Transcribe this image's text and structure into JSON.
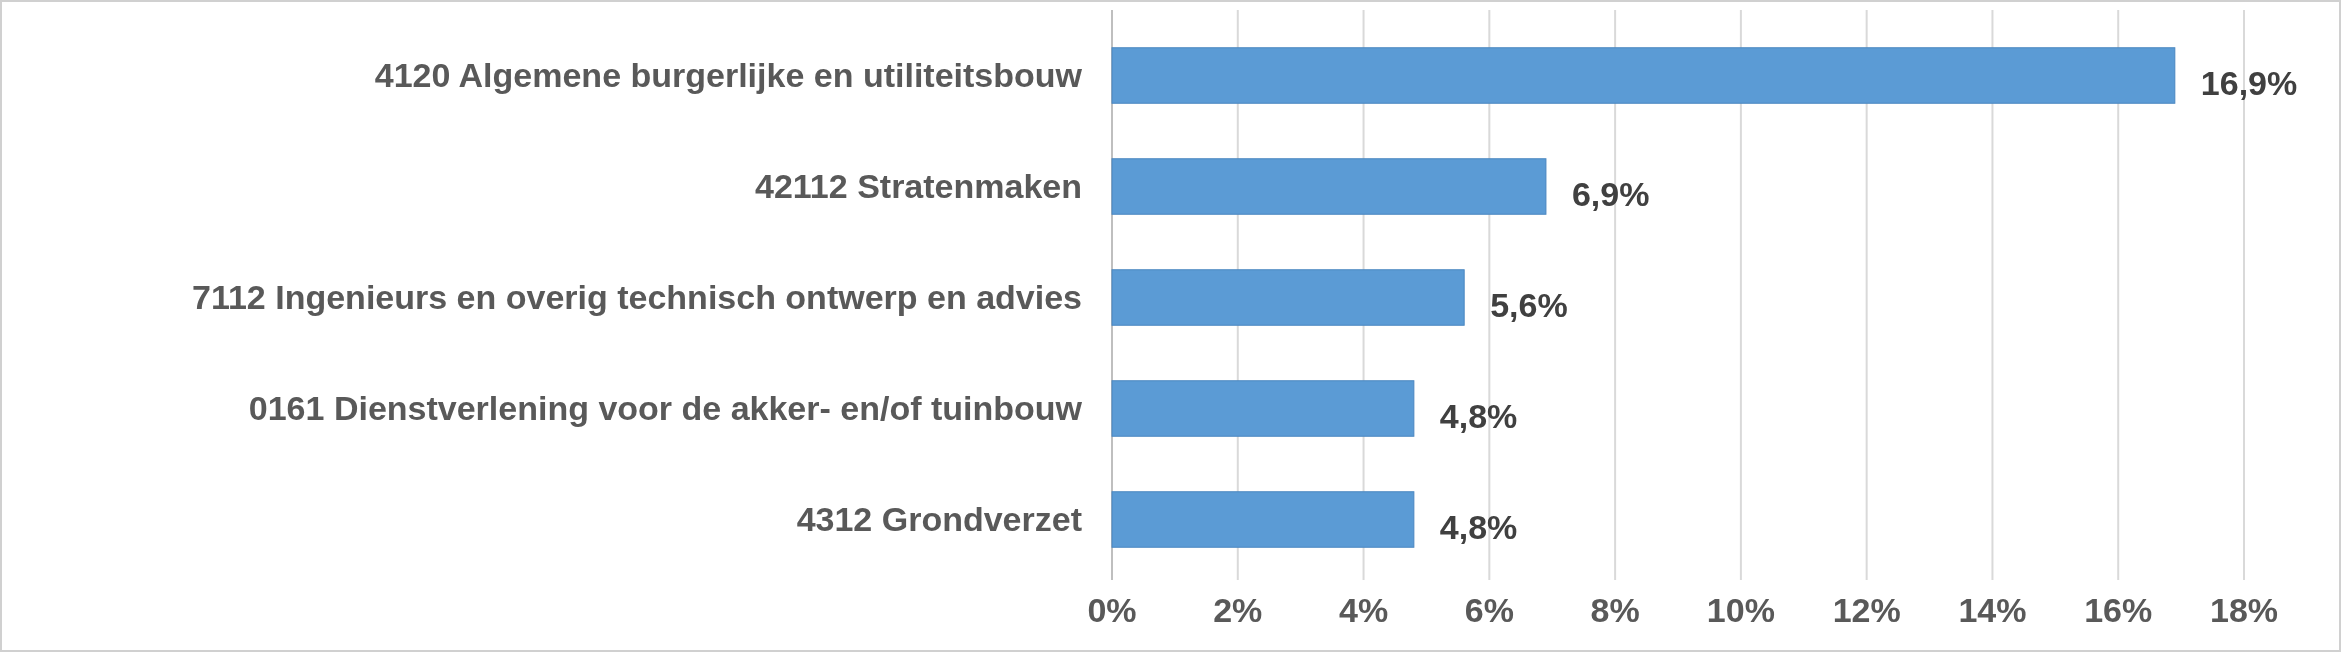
{
  "chart_data": {
    "type": "bar",
    "orientation": "horizontal",
    "categories": [
      "4120 Algemene burgerlijke en utiliteitsbouw",
      "42112 Stratenmaken",
      "7112 Ingenieurs en overig technisch ontwerp en advies",
      "0161 Dienstverlening voor de akker- en/of tuinbouw",
      "4312 Grondverzet"
    ],
    "values": [
      16.9,
      6.9,
      5.6,
      4.8,
      4.8
    ],
    "value_labels": [
      "16,9%",
      "6,9%",
      "5,6%",
      "4,8%",
      "4,8%"
    ],
    "color": "#5b9bd5",
    "xlim": [
      0,
      18
    ],
    "xticks": [
      {
        "value": 0,
        "label": "0%"
      },
      {
        "value": 2,
        "label": "2%"
      },
      {
        "value": 4,
        "label": "4%"
      },
      {
        "value": 6,
        "label": "6%"
      },
      {
        "value": 8,
        "label": "8%"
      },
      {
        "value": 10,
        "label": "10%"
      },
      {
        "value": 12,
        "label": "12%"
      },
      {
        "value": 14,
        "label": "14%"
      },
      {
        "value": 16,
        "label": "16%"
      },
      {
        "value": 18,
        "label": "18%"
      }
    ],
    "grid": "x"
  }
}
